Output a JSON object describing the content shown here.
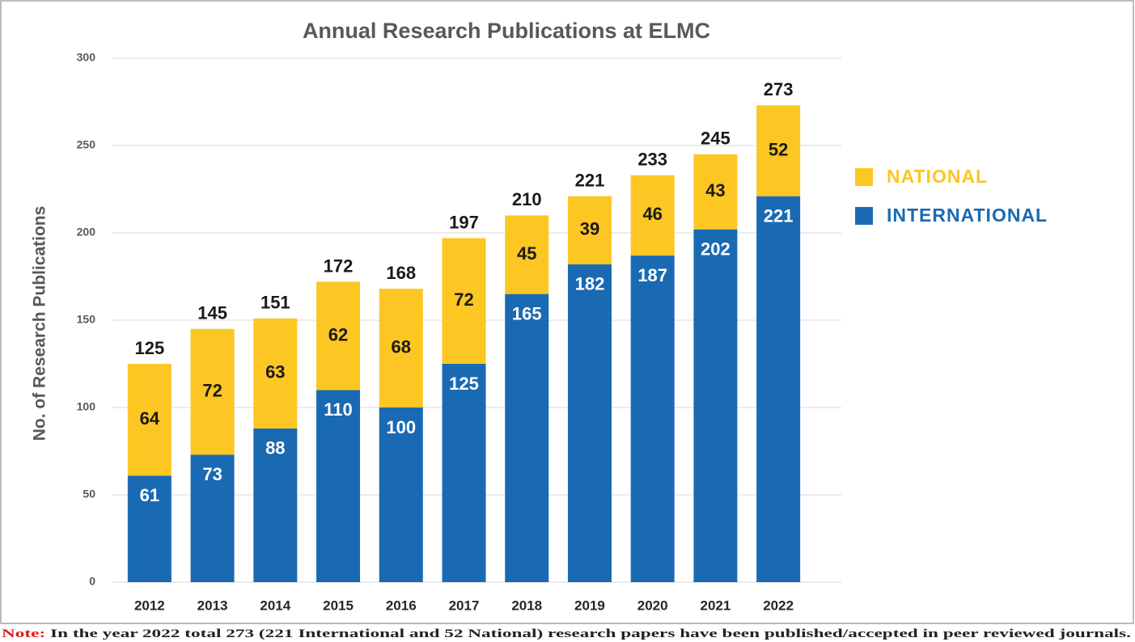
{
  "chart_data": {
    "type": "stacked_bar",
    "title": "Annual Research Publications at ELMC",
    "y_label": "No. of Research Publications",
    "categories": [
      "2012",
      "2013",
      "2014",
      "2015",
      "2016",
      "2017",
      "2018",
      "2019",
      "2020",
      "2021",
      "2022"
    ],
    "series": [
      {
        "name": "INTERNATIONAL",
        "color": "#1a6ab3",
        "values": [
          61,
          73,
          88,
          110,
          100,
          125,
          165,
          182,
          187,
          202,
          221
        ]
      },
      {
        "name": "NATIONAL",
        "color": "#fcc623",
        "values": [
          64,
          72,
          63,
          62,
          68,
          72,
          45,
          39,
          46,
          43,
          52
        ]
      }
    ],
    "totals": [
      125,
      145,
      151,
      172,
      168,
      197,
      210,
      221,
      233,
      245,
      273
    ],
    "ylim": [
      0,
      300
    ],
    "yticks": [
      0,
      50,
      100,
      150,
      200,
      250,
      300
    ],
    "grid": true,
    "note_label": "Note:",
    "note": "In the year 2022 total 273 (221 International and 52 National) research papers have been published/accepted in peer reviewed journals."
  }
}
